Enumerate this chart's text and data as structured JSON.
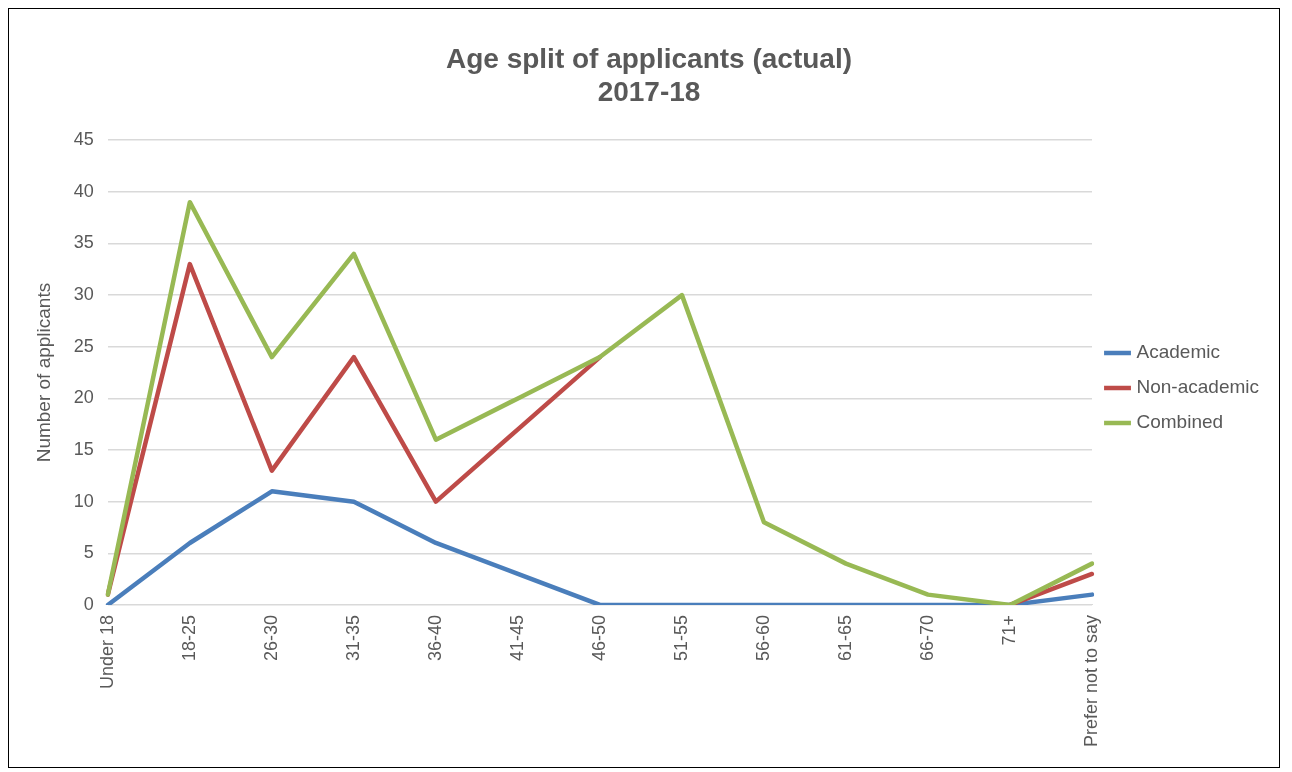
{
  "chart_data": {
    "type": "line",
    "title": "Age split of applicants (actual)",
    "subtitle": "2017-18",
    "ylabel": "Number of applicants",
    "categories": [
      "Under 18",
      "18-25",
      "26-30",
      "31-35",
      "36-40",
      "41-45",
      "46-50",
      "51-55",
      "56-60",
      "61-65",
      "66-70",
      "71+",
      "Prefer not to say"
    ],
    "series": [
      {
        "name": "Academic",
        "color": "#4a7ebb",
        "values": [
          0,
          6,
          11,
          10,
          6,
          3,
          0,
          0,
          0,
          0,
          0,
          0,
          1
        ]
      },
      {
        "name": "Non-academic",
        "color": "#be4b48",
        "values": [
          1,
          33,
          13,
          24,
          10,
          17,
          24,
          null,
          null,
          null,
          null,
          0,
          3
        ]
      },
      {
        "name": "Combined",
        "color": "#98b954",
        "values": [
          1,
          39,
          24,
          34,
          16,
          20,
          24,
          30,
          8,
          4,
          1,
          0,
          4
        ]
      }
    ],
    "ylim": [
      0,
      45
    ],
    "yticks": [
      0,
      5,
      10,
      15,
      20,
      25,
      30,
      35,
      40,
      45
    ],
    "grid": "y",
    "legend": "right",
    "marker": "none",
    "line_style": "solid"
  }
}
